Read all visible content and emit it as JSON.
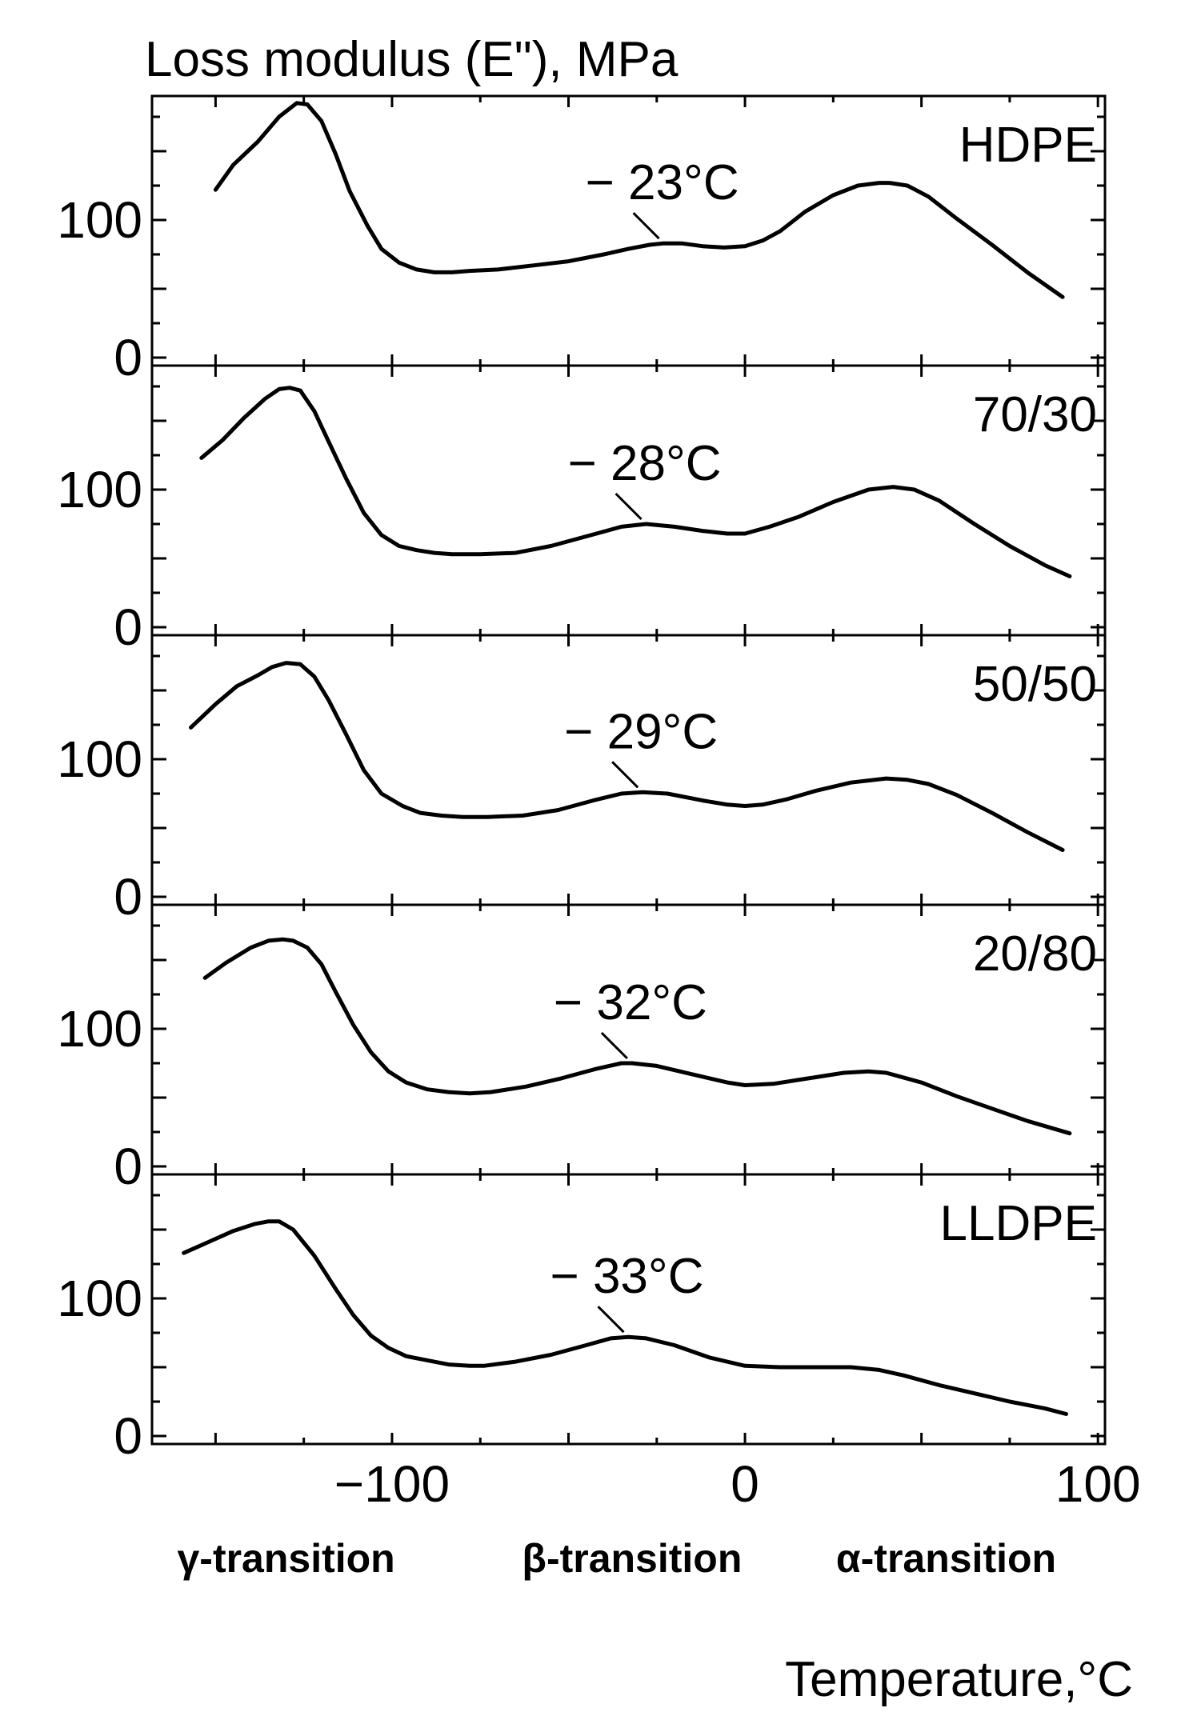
{
  "chart_data": {
    "type": "line",
    "title": "Loss modulus (E\"), MPa",
    "xlabel": "Temperature,°C",
    "xlim": [
      -168,
      102
    ],
    "x_ticks": [
      -100,
      0,
      100
    ],
    "x_tick_labels": [
      "−100",
      "0",
      "100"
    ],
    "ylim": [
      0,
      200
    ],
    "y_ticks": [
      0,
      100
    ],
    "y_tick_labels": [
      "0",
      "100"
    ],
    "transition_labels": [
      {
        "text": "γ-transition",
        "x": -130
      },
      {
        "text": "β-transition",
        "x": -32
      },
      {
        "text": "α-transition",
        "x": 57
      }
    ],
    "panels": [
      {
        "name": "HDPE",
        "beta_label": "− 23°C",
        "beta_x": -23,
        "x": [
          -150,
          -145,
          -138,
          -132,
          -127,
          -124,
          -120,
          -116,
          -112,
          -107,
          -103,
          -98,
          -93,
          -88,
          -83,
          -78,
          -70,
          -60,
          -50,
          -40,
          -33,
          -27,
          -23,
          -18,
          -12,
          -6,
          0,
          5,
          10,
          17,
          25,
          32,
          38,
          41,
          46,
          52,
          60,
          70,
          80,
          90
        ],
        "y": [
          122,
          140,
          157,
          175,
          185,
          184,
          172,
          148,
          121,
          96,
          79,
          69,
          64,
          62,
          62,
          63,
          64,
          67,
          70,
          75,
          79,
          82,
          83,
          83,
          81,
          80,
          81,
          85,
          92,
          106,
          118,
          125,
          127,
          127,
          125,
          117,
          101,
          82,
          62,
          44
        ]
      },
      {
        "name": "70/30",
        "beta_label": "− 28°C",
        "beta_x": -28,
        "x": [
          -154,
          -148,
          -142,
          -136,
          -132,
          -129,
          -126,
          -122,
          -118,
          -113,
          -108,
          -103,
          -98,
          -93,
          -88,
          -83,
          -75,
          -65,
          -55,
          -45,
          -35,
          -28,
          -20,
          -12,
          -5,
          0,
          7,
          15,
          25,
          35,
          42,
          48,
          55,
          65,
          75,
          85,
          92
        ],
        "y": [
          123,
          136,
          152,
          166,
          173,
          174,
          172,
          157,
          135,
          108,
          83,
          67,
          59,
          56,
          54,
          53,
          53,
          54,
          59,
          66,
          73,
          75,
          73,
          70,
          68,
          68,
          73,
          80,
          91,
          100,
          102,
          100,
          92,
          75,
          59,
          45,
          37
        ]
      },
      {
        "name": "50/50",
        "beta_label": "− 29°C",
        "beta_x": -29,
        "x": [
          -157,
          -150,
          -144,
          -138,
          -134,
          -130,
          -126,
          -122,
          -118,
          -113,
          -108,
          -103,
          -97,
          -92,
          -86,
          -80,
          -73,
          -63,
          -53,
          -43,
          -35,
          -29,
          -22,
          -12,
          -5,
          0,
          5,
          12,
          20,
          30,
          40,
          46,
          52,
          60,
          70,
          80,
          90
        ],
        "y": [
          123,
          140,
          153,
          161,
          167,
          170,
          169,
          160,
          143,
          118,
          92,
          75,
          66,
          61,
          59,
          58,
          58,
          59,
          63,
          70,
          75,
          76,
          75,
          70,
          67,
          66,
          67,
          71,
          77,
          83,
          86,
          85,
          82,
          74,
          61,
          47,
          34
        ]
      },
      {
        "name": "20/80",
        "beta_label": "− 32°C",
        "beta_x": -32,
        "x": [
          -153,
          -147,
          -140,
          -135,
          -131,
          -128,
          -124,
          -120,
          -116,
          -111,
          -106,
          -101,
          -96,
          -90,
          -84,
          -78,
          -72,
          -62,
          -52,
          -42,
          -35,
          -32,
          -25,
          -15,
          -5,
          0,
          8,
          18,
          28,
          35,
          40,
          50,
          60,
          70,
          80,
          92
        ],
        "y": [
          137,
          148,
          159,
          164,
          165,
          164,
          159,
          147,
          127,
          103,
          83,
          69,
          61,
          56,
          54,
          53,
          54,
          58,
          64,
          71,
          75,
          75,
          73,
          67,
          61,
          59,
          60,
          64,
          68,
          69,
          68,
          61,
          51,
          42,
          33,
          24
        ]
      },
      {
        "name": "LLDPE",
        "beta_label": "− 33°C",
        "beta_x": -33,
        "x": [
          -159,
          -152,
          -145,
          -139,
          -135,
          -132,
          -128,
          -122,
          -116,
          -111,
          -106,
          -101,
          -96,
          -90,
          -84,
          -78,
          -74,
          -65,
          -55,
          -45,
          -38,
          -33,
          -28,
          -20,
          -10,
          0,
          10,
          20,
          30,
          38,
          45,
          55,
          65,
          75,
          85,
          91
        ],
        "y": [
          133,
          141,
          149,
          154,
          156,
          156,
          150,
          131,
          107,
          88,
          73,
          64,
          58,
          55,
          52,
          51,
          51,
          54,
          59,
          66,
          71,
          72,
          71,
          66,
          57,
          51,
          50,
          50,
          50,
          48,
          44,
          37,
          31,
          25,
          20,
          16
        ]
      }
    ]
  }
}
